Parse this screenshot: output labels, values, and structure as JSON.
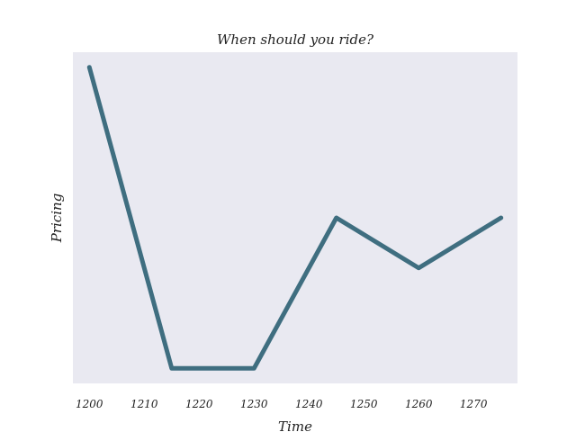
{
  "chart_data": {
    "type": "line",
    "title": "When should you ride?",
    "xlabel": "Time",
    "ylabel": "Pricing",
    "x": [
      1200,
      1215,
      1230,
      1245,
      1260,
      1275
    ],
    "series": [
      {
        "values": [
          6.0,
          0.0,
          0.0,
          3.0,
          2.0,
          3.0
        ]
      }
    ],
    "xlim": [
      1197,
      1278
    ],
    "ylim": [
      -0.3,
      6.3
    ],
    "xticks": [
      1200,
      1210,
      1220,
      1230,
      1240,
      1250,
      1260,
      1270
    ],
    "yticks_visible": false,
    "grid": false,
    "plot_background": "#e9e9f1",
    "line_color": "#3f6e80"
  }
}
